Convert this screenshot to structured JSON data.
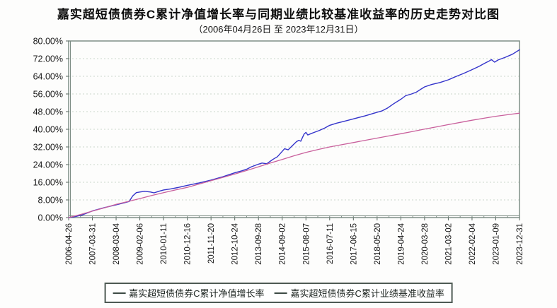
{
  "header": {
    "title": "嘉实超短债债券C累计净值增长率与同期业绩比较基准收益率的历史走势对比图",
    "subtitle": "（2006年04月26日 至 2023年12月31日）"
  },
  "legend": {
    "items": [
      {
        "marker": "—",
        "marker_color": "#3d4b45",
        "label": "嘉实超短债债券C累计净值增长率"
      },
      {
        "marker": "—",
        "marker_color": "#3d4b45",
        "label": "嘉实超短债债券C累计业绩基准收益率"
      }
    ]
  },
  "colors": {
    "fund_line": "#3434cb",
    "benchmark_line": "#c9609c",
    "frame": "#7e8e86",
    "gridline": "#ccd6cc",
    "tick": "#55645c",
    "axis_text": "#1a1a1a",
    "background": "#fdfdfc"
  },
  "chart_data": {
    "type": "line",
    "title": "嘉实超短债债券C累计净值增长率与同期业绩比较基准收益率的历史走势对比图",
    "subtitle": "（2006年04月26日 至 2023年12月31日）",
    "grid": "horizontal-dashed",
    "legend_position": "bottom",
    "ylim": [
      0,
      80
    ],
    "y_tick_step": 8,
    "y_tick_labels": [
      "0.00%",
      "8.00%",
      "16.00%",
      "24.00%",
      "32.00%",
      "40.00%",
      "48.00%",
      "56.00%",
      "64.00%",
      "72.00%",
      "80.00%"
    ],
    "x_tick_labels": [
      "2006-04-26",
      "2007-03-31",
      "2008-03-04",
      "2009-02-06",
      "2010-01-11",
      "2010-12-16",
      "2011-11-20",
      "2012-10-24",
      "2013-09-28",
      "2014-09-02",
      "2015-08-07",
      "2016-07-11",
      "2017-06-15",
      "2018-05-20",
      "2019-04-24",
      "2020-03-28",
      "2021-03-02",
      "2022-02-04",
      "2023-01-09",
      "2023-12-31"
    ],
    "series": [
      {
        "name": "嘉实超短债债券C累计净值增长率",
        "color": "#3434cb",
        "width": 1.4,
        "points": [
          [
            0,
            0
          ],
          [
            0.3,
            0.5
          ],
          [
            0.6,
            1.3
          ],
          [
            1,
            3.0
          ],
          [
            1.5,
            4.5
          ],
          [
            2,
            5.8
          ],
          [
            2.3,
            6.6
          ],
          [
            2.55,
            7.3
          ],
          [
            2.7,
            9.8
          ],
          [
            2.85,
            11.3
          ],
          [
            3,
            11.6
          ],
          [
            3.2,
            11.9
          ],
          [
            3.45,
            11.6
          ],
          [
            3.6,
            11.2
          ],
          [
            3.8,
            11.9
          ],
          [
            4,
            12.5
          ],
          [
            4.3,
            13.0
          ],
          [
            4.6,
            13.6
          ],
          [
            5,
            14.6
          ],
          [
            5.5,
            15.7
          ],
          [
            6,
            17.0
          ],
          [
            6.5,
            18.5
          ],
          [
            7,
            20.3
          ],
          [
            7.3,
            21.2
          ],
          [
            7.5,
            21.9
          ],
          [
            7.7,
            23.0
          ],
          [
            8,
            24.2
          ],
          [
            8.15,
            24.7
          ],
          [
            8.35,
            24.4
          ],
          [
            8.6,
            26.3
          ],
          [
            8.8,
            27.6
          ],
          [
            9,
            30.0
          ],
          [
            9.1,
            31.2
          ],
          [
            9.25,
            30.7
          ],
          [
            9.45,
            32.8
          ],
          [
            9.6,
            34.4
          ],
          [
            9.7,
            35.0
          ],
          [
            9.78,
            34.6
          ],
          [
            9.92,
            37.8
          ],
          [
            10,
            38.6
          ],
          [
            10.08,
            37.4
          ],
          [
            10.2,
            38.0
          ],
          [
            10.35,
            38.6
          ],
          [
            10.55,
            39.4
          ],
          [
            10.8,
            40.6
          ],
          [
            11,
            41.8
          ],
          [
            11.3,
            42.8
          ],
          [
            11.6,
            43.6
          ],
          [
            12,
            44.7
          ],
          [
            12.5,
            46.1
          ],
          [
            13,
            47.7
          ],
          [
            13.2,
            48.3
          ],
          [
            13.45,
            49.7
          ],
          [
            13.7,
            51.6
          ],
          [
            14,
            53.6
          ],
          [
            14.2,
            55.2
          ],
          [
            14.45,
            56.0
          ],
          [
            14.65,
            56.8
          ],
          [
            14.85,
            58.2
          ],
          [
            15,
            59.2
          ],
          [
            15.3,
            60.3
          ],
          [
            15.65,
            61.2
          ],
          [
            16,
            62.4
          ],
          [
            16.3,
            63.8
          ],
          [
            16.65,
            65.3
          ],
          [
            17,
            67.0
          ],
          [
            17.3,
            68.5
          ],
          [
            17.55,
            70.0
          ],
          [
            17.7,
            70.8
          ],
          [
            17.82,
            71.6
          ],
          [
            17.95,
            70.4
          ],
          [
            18.1,
            71.4
          ],
          [
            18.4,
            72.6
          ],
          [
            18.7,
            74.0
          ],
          [
            19,
            76.0
          ]
        ]
      },
      {
        "name": "嘉实超短债债券C累计业绩基准收益率",
        "color": "#c9609c",
        "width": 1.3,
        "points": [
          [
            0,
            0
          ],
          [
            0.5,
            1.4
          ],
          [
            1,
            2.9
          ],
          [
            1.5,
            4.4
          ],
          [
            2,
            6.0
          ],
          [
            2.5,
            7.3
          ],
          [
            3,
            8.6
          ],
          [
            3.5,
            10.0
          ],
          [
            4,
            11.3
          ],
          [
            4.5,
            12.5
          ],
          [
            5,
            13.7
          ],
          [
            5.5,
            15.2
          ],
          [
            6,
            16.7
          ],
          [
            6.5,
            18.2
          ],
          [
            7,
            19.7
          ],
          [
            7.5,
            21.3
          ],
          [
            8,
            23.0
          ],
          [
            8.5,
            24.7
          ],
          [
            9,
            26.3
          ],
          [
            9.5,
            28.0
          ],
          [
            10,
            29.5
          ],
          [
            10.5,
            30.8
          ],
          [
            11,
            32.0
          ],
          [
            11.5,
            33.0
          ],
          [
            12,
            34.0
          ],
          [
            12.5,
            35.0
          ],
          [
            13,
            36.0
          ],
          [
            13.5,
            37.0
          ],
          [
            14,
            38.0
          ],
          [
            14.5,
            39.0
          ],
          [
            15,
            40.1
          ],
          [
            15.5,
            41.1
          ],
          [
            16,
            42.1
          ],
          [
            16.5,
            43.1
          ],
          [
            17,
            44.1
          ],
          [
            17.5,
            45.0
          ],
          [
            18,
            45.9
          ],
          [
            18.5,
            46.6
          ],
          [
            19,
            47.3
          ]
        ]
      }
    ]
  }
}
